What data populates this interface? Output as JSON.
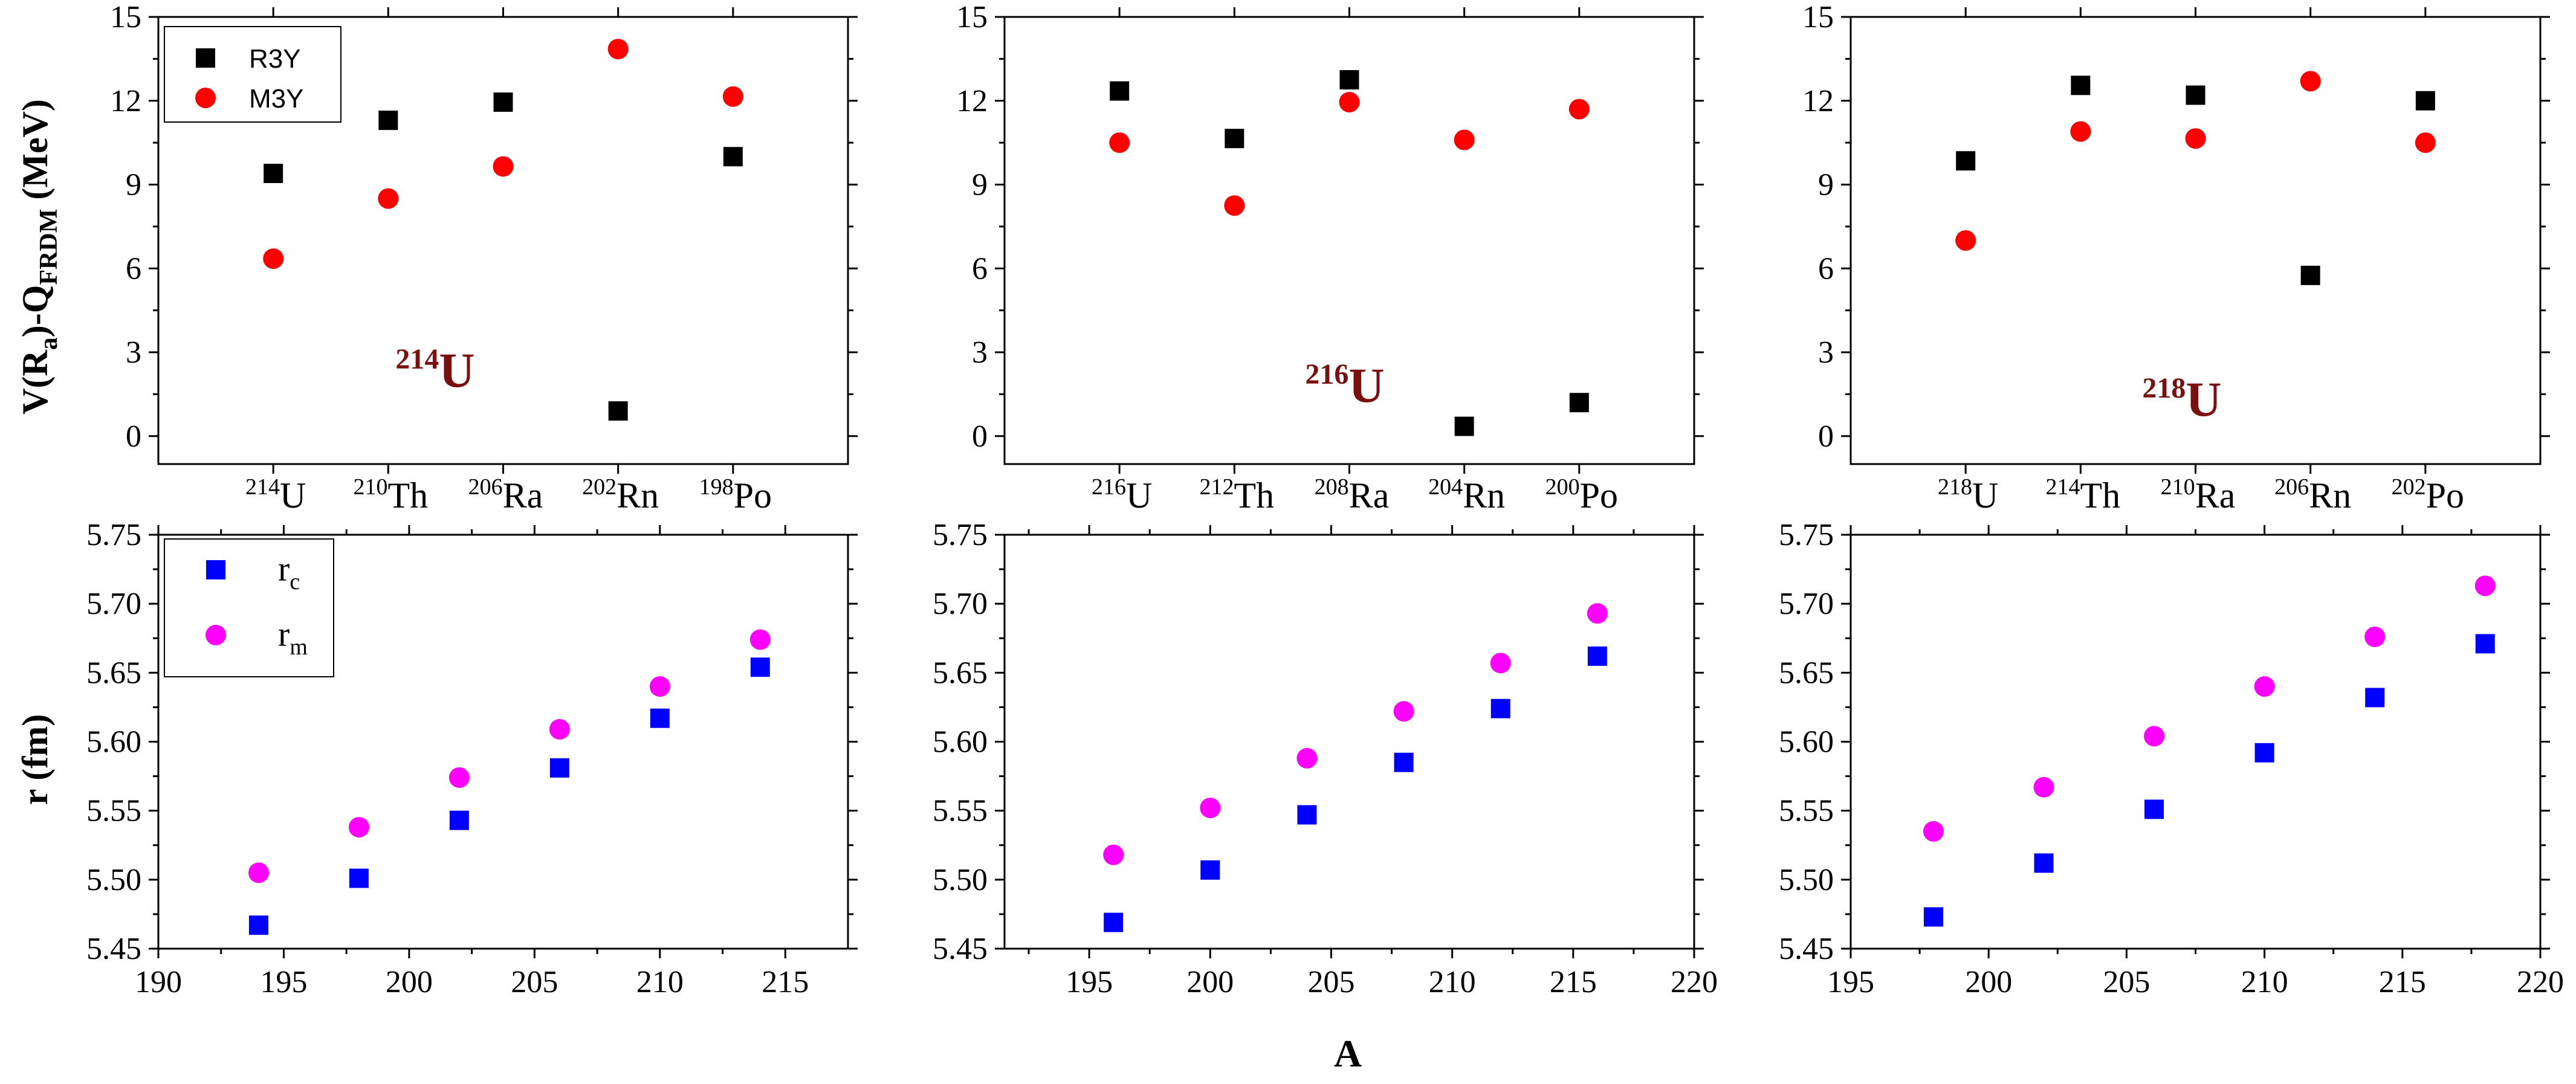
{
  "figure": {
    "top_ylabel": {
      "main": "V(R",
      "sub1": "a",
      "mid": ")-Q",
      "sub2": "FRDM",
      "end": "  (MeV)"
    },
    "bottom_ylabel": "r (fm)",
    "bottom_xlabel": "A"
  },
  "legends": {
    "top": [
      {
        "label": "R3Y",
        "color": "#000000",
        "marker": "square"
      },
      {
        "label": "M3Y",
        "color": "#ff0000",
        "marker": "circle"
      }
    ],
    "bottom": [
      {
        "base": "r",
        "sub": "c",
        "color": "#0000ff",
        "marker": "square"
      },
      {
        "base": "r",
        "sub": "m",
        "color": "#ff00ff",
        "marker": "circle"
      }
    ]
  },
  "colors": {
    "R3Y": "#000000",
    "M3Y": "#ff0000",
    "rc": "#0000ff",
    "rm": "#ff00ff",
    "label": "#7a0f0f"
  },
  "chart_data": [
    {
      "type": "scatter",
      "panel": "top-left",
      "annotation": {
        "mass": "214",
        "symbol": "U"
      },
      "categories": [
        {
          "mass": "214",
          "el": "U"
        },
        {
          "mass": "210",
          "el": "Th"
        },
        {
          "mass": "206",
          "el": "Ra"
        },
        {
          "mass": "202",
          "el": "Rn"
        },
        {
          "mass": "198",
          "el": "Po"
        }
      ],
      "ylim": [
        -1,
        15
      ],
      "yticks": [
        "0",
        "3",
        "6",
        "9",
        "12",
        "15"
      ],
      "series": [
        {
          "name": "R3Y",
          "values": [
            9.4,
            11.3,
            11.95,
            0.9,
            10.0
          ]
        },
        {
          "name": "M3Y",
          "values": [
            6.35,
            8.5,
            9.65,
            13.85,
            12.15
          ]
        }
      ],
      "legend": "top-left"
    },
    {
      "type": "scatter",
      "panel": "top-middle",
      "annotation": {
        "mass": "216",
        "symbol": "U"
      },
      "categories": [
        {
          "mass": "216",
          "el": "U"
        },
        {
          "mass": "212",
          "el": "Th"
        },
        {
          "mass": "208",
          "el": "Ra"
        },
        {
          "mass": "204",
          "el": "Rn"
        },
        {
          "mass": "200",
          "el": "Po"
        }
      ],
      "ylim": [
        -1,
        15
      ],
      "yticks": [
        "0",
        "3",
        "6",
        "9",
        "12",
        "15"
      ],
      "series": [
        {
          "name": "R3Y",
          "values": [
            12.35,
            10.65,
            12.75,
            0.35,
            1.2
          ]
        },
        {
          "name": "M3Y",
          "values": [
            10.5,
            8.25,
            11.95,
            10.6,
            11.7
          ]
        }
      ]
    },
    {
      "type": "scatter",
      "panel": "top-right",
      "annotation": {
        "mass": "218",
        "symbol": "U"
      },
      "categories": [
        {
          "mass": "218",
          "el": "U"
        },
        {
          "mass": "214",
          "el": "Th"
        },
        {
          "mass": "210",
          "el": "Ra"
        },
        {
          "mass": "206",
          "el": "Rn"
        },
        {
          "mass": "202",
          "el": "Po"
        }
      ],
      "ylim": [
        -1,
        15
      ],
      "yticks": [
        "0",
        "3",
        "6",
        "9",
        "12",
        "15"
      ],
      "series": [
        {
          "name": "R3Y",
          "values": [
            9.85,
            12.55,
            12.2,
            5.75,
            12.0
          ]
        },
        {
          "name": "M3Y",
          "values": [
            7.0,
            10.9,
            10.65,
            12.7,
            10.5
          ]
        }
      ]
    },
    {
      "type": "scatter",
      "panel": "bottom-left",
      "xlim": [
        190,
        217.5
      ],
      "xticks": [
        190,
        195,
        200,
        205,
        210,
        215
      ],
      "ylim": [
        5.45,
        5.75
      ],
      "yticks": [
        "5.45",
        "5.50",
        "5.55",
        "5.60",
        "5.65",
        "5.70",
        "5.75"
      ],
      "series": [
        {
          "name": "rc",
          "x": [
            194,
            198,
            202,
            206,
            210,
            214
          ],
          "y": [
            5.467,
            5.501,
            5.543,
            5.581,
            5.617,
            5.654
          ]
        },
        {
          "name": "rm",
          "x": [
            194,
            198,
            202,
            206,
            210,
            214
          ],
          "y": [
            5.505,
            5.538,
            5.574,
            5.609,
            5.64,
            5.674
          ]
        }
      ],
      "legend": "top-left"
    },
    {
      "type": "scatter",
      "panel": "bottom-middle",
      "xlim": [
        191.5,
        220
      ],
      "xticks": [
        195,
        200,
        205,
        210,
        215,
        220
      ],
      "ylim": [
        5.45,
        5.75
      ],
      "yticks": [
        "5.45",
        "5.50",
        "5.55",
        "5.60",
        "5.65",
        "5.70",
        "5.75"
      ],
      "series": [
        {
          "name": "rc",
          "x": [
            196,
            200,
            204,
            208,
            212,
            216
          ],
          "y": [
            5.469,
            5.507,
            5.547,
            5.585,
            5.624,
            5.662
          ]
        },
        {
          "name": "rm",
          "x": [
            196,
            200,
            204,
            208,
            212,
            216
          ],
          "y": [
            5.518,
            5.552,
            5.588,
            5.622,
            5.657,
            5.693
          ]
        }
      ]
    },
    {
      "type": "scatter",
      "panel": "bottom-right",
      "xlim": [
        195,
        220
      ],
      "xticks": [
        195,
        200,
        205,
        210,
        215,
        220
      ],
      "ylim": [
        5.45,
        5.75
      ],
      "yticks": [
        "5.45",
        "5.50",
        "5.55",
        "5.60",
        "5.65",
        "5.70",
        "5.75"
      ],
      "series": [
        {
          "name": "rc",
          "x": [
            198,
            202,
            206,
            210,
            214,
            218
          ],
          "y": [
            5.473,
            5.512,
            5.551,
            5.592,
            5.632,
            5.671
          ]
        },
        {
          "name": "rm",
          "x": [
            198,
            202,
            206,
            210,
            214,
            218
          ],
          "y": [
            5.535,
            5.567,
            5.604,
            5.64,
            5.676,
            5.713
          ]
        }
      ]
    }
  ]
}
